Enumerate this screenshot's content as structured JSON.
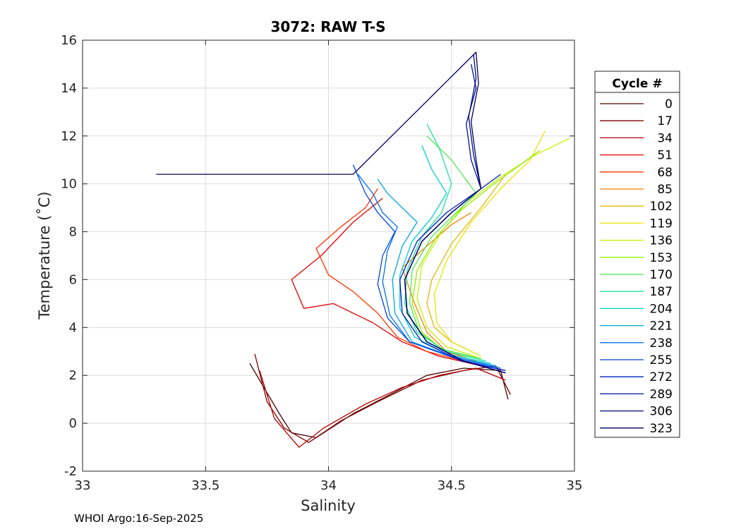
{
  "chart_data": {
    "type": "line",
    "title": "3072: RAW T-S",
    "xlabel": "Salinity",
    "ylabel": "Temperature (˚C)",
    "xlim": [
      33,
      35
    ],
    "ylim": [
      -2,
      16
    ],
    "xticks": [
      "33",
      "33.5",
      "34",
      "34.5",
      "35"
    ],
    "yticks": [
      "-2",
      "0",
      "2",
      "4",
      "6",
      "8",
      "10",
      "12",
      "14",
      "16"
    ],
    "grid": true,
    "legend": {
      "title": "Cycle #",
      "placement": "right-outside",
      "entries": [
        "0",
        "17",
        "34",
        "51",
        "68",
        "85",
        "102",
        "119",
        "136",
        "153",
        "170",
        "187",
        "204",
        "221",
        "238",
        "255",
        "272",
        "289",
        "306",
        "323"
      ],
      "colors": [
        "#4d0000",
        "#800000",
        "#b30000",
        "#e60000",
        "#ff3300",
        "#ff8000",
        "#e6b800",
        "#e6e600",
        "#c8f000",
        "#90f000",
        "#50e850",
        "#20e0a0",
        "#00d0d0",
        "#00a8e0",
        "#0070f0",
        "#0040e0",
        "#0020c0",
        "#0010a0",
        "#000a80",
        "#000066"
      ]
    },
    "series": [
      {
        "name": "0",
        "x": [
          34.73,
          34.7,
          34.55,
          34.4,
          34.25,
          34.1,
          33.95,
          33.85,
          33.8,
          33.72,
          33.68
        ],
        "y": [
          1.0,
          2.2,
          2.3,
          2.0,
          1.2,
          0.4,
          -0.6,
          -0.4,
          0.4,
          1.8,
          2.5
        ]
      },
      {
        "name": "17",
        "x": [
          34.74,
          34.68,
          34.55,
          34.38,
          34.2,
          34.05,
          33.92,
          33.82,
          33.75,
          33.7
        ],
        "y": [
          1.2,
          2.4,
          2.2,
          1.8,
          0.9,
          0.1,
          -0.8,
          -0.2,
          0.9,
          2.9
        ]
      },
      {
        "name": "34",
        "x": [
          34.72,
          34.6,
          34.45,
          34.3,
          34.15,
          33.98,
          33.88,
          33.78,
          33.72
        ],
        "y": [
          1.8,
          2.3,
          2.0,
          1.5,
          0.8,
          -0.2,
          -1.0,
          0.2,
          2.2
        ]
      },
      {
        "name": "51",
        "x": [
          34.62,
          34.45,
          34.3,
          34.18,
          34.02,
          33.9,
          33.85,
          33.97,
          34.1,
          34.22
        ],
        "y": [
          2.4,
          2.8,
          3.4,
          4.2,
          5.0,
          4.8,
          6.0,
          7.0,
          8.4,
          9.4
        ]
      },
      {
        "name": "68",
        "x": [
          34.55,
          34.4,
          34.28,
          34.2,
          34.1,
          34.0,
          33.95,
          34.05,
          34.15,
          34.2
        ],
        "y": [
          2.6,
          3.0,
          3.6,
          4.6,
          5.5,
          6.2,
          7.3,
          8.2,
          9.0,
          9.8
        ]
      },
      {
        "name": "85",
        "x": [
          34.6,
          34.48,
          34.4,
          34.35,
          34.3,
          34.5,
          34.58
        ],
        "y": [
          2.6,
          3.0,
          3.8,
          5.0,
          6.5,
          8.3,
          8.8
        ]
      },
      {
        "name": "102",
        "x": [
          34.62,
          34.5,
          34.43,
          34.4,
          34.42,
          34.5,
          34.62,
          34.72
        ],
        "y": [
          2.8,
          3.4,
          4.0,
          5.0,
          6.0,
          7.5,
          9.0,
          10.4
        ]
      },
      {
        "name": "119",
        "x": [
          34.62,
          34.5,
          34.44,
          34.43,
          34.48,
          34.58,
          34.7,
          34.82,
          34.88
        ],
        "y": [
          2.8,
          3.4,
          4.2,
          5.4,
          6.8,
          8.4,
          9.8,
          11.0,
          12.2
        ]
      },
      {
        "name": "136",
        "x": [
          34.62,
          34.48,
          34.4,
          34.36,
          34.38,
          34.46,
          34.56,
          34.7,
          34.84,
          34.98
        ],
        "y": [
          2.7,
          3.2,
          4.0,
          5.2,
          6.6,
          8.0,
          9.2,
          10.3,
          11.2,
          11.9
        ]
      },
      {
        "name": "153",
        "x": [
          34.62,
          34.46,
          34.38,
          34.34,
          34.36,
          34.44,
          34.54,
          34.66,
          34.78,
          34.86
        ],
        "y": [
          2.7,
          3.1,
          3.8,
          5.0,
          6.4,
          7.8,
          8.9,
          9.9,
          10.8,
          11.4
        ]
      },
      {
        "name": "170",
        "x": [
          34.62,
          34.46,
          34.37,
          34.33,
          34.34,
          34.42,
          34.52,
          34.6,
          34.5,
          34.4
        ],
        "y": [
          2.7,
          3.1,
          3.8,
          5.0,
          6.4,
          7.8,
          8.8,
          9.6,
          11.0,
          12.0
        ]
      },
      {
        "name": "187",
        "x": [
          34.64,
          34.48,
          34.36,
          34.31,
          34.32,
          34.38,
          34.46,
          34.5,
          34.45,
          34.4
        ],
        "y": [
          2.6,
          3.0,
          3.8,
          5.0,
          6.4,
          7.8,
          8.8,
          10.0,
          11.5,
          12.5
        ]
      },
      {
        "name": "204",
        "x": [
          34.66,
          34.48,
          34.35,
          34.29,
          34.29,
          34.34,
          34.42,
          34.48,
          34.42,
          34.38
        ],
        "y": [
          2.5,
          2.9,
          3.6,
          4.8,
          6.2,
          7.6,
          8.6,
          9.6,
          10.6,
          11.6
        ]
      },
      {
        "name": "221",
        "x": [
          34.68,
          34.5,
          34.34,
          34.27,
          34.26,
          34.3,
          34.36,
          34.3,
          34.24,
          34.2
        ],
        "y": [
          2.4,
          2.8,
          3.4,
          4.6,
          6.0,
          7.4,
          8.4,
          9.0,
          9.6,
          10.2
        ]
      },
      {
        "name": "238",
        "x": [
          34.7,
          34.5,
          34.33,
          34.25,
          34.22,
          34.24,
          34.28,
          34.22,
          34.18,
          34.12
        ],
        "y": [
          2.3,
          2.8,
          3.4,
          4.5,
          5.9,
          7.2,
          8.2,
          8.8,
          9.6,
          10.4
        ]
      },
      {
        "name": "255",
        "x": [
          34.72,
          34.52,
          34.33,
          34.24,
          34.2,
          34.22,
          34.27,
          34.2,
          34.15,
          34.1
        ],
        "y": [
          2.2,
          2.7,
          3.4,
          4.4,
          5.8,
          7.0,
          8.0,
          8.8,
          9.6,
          10.8
        ]
      },
      {
        "name": "272",
        "x": [
          34.72,
          34.54,
          34.38,
          34.3,
          34.29,
          34.36,
          34.48,
          34.62,
          34.7
        ],
        "y": [
          2.2,
          2.6,
          3.4,
          4.6,
          6.0,
          7.6,
          8.8,
          9.8,
          10.4
        ]
      },
      {
        "name": "289",
        "x": [
          34.72,
          34.55,
          34.4,
          34.32,
          34.31,
          34.38,
          34.5,
          34.62,
          34.58,
          34.56,
          34.6,
          34.58
        ],
        "y": [
          2.1,
          2.6,
          3.4,
          4.6,
          6.0,
          7.6,
          8.8,
          9.8,
          11.0,
          12.5,
          14.0,
          15.0
        ]
      },
      {
        "name": "306",
        "x": [
          34.72,
          34.55,
          34.4,
          34.32,
          34.31,
          34.38,
          34.5,
          34.62,
          34.59,
          34.57,
          34.6,
          34.59
        ],
        "y": [
          2.1,
          2.6,
          3.4,
          4.6,
          6.0,
          7.6,
          8.8,
          9.8,
          11.2,
          12.8,
          14.4,
          15.4
        ]
      },
      {
        "name": "323",
        "x": [
          34.72,
          34.55,
          34.4,
          34.32,
          34.31,
          34.38,
          34.5,
          34.62,
          34.6,
          34.58,
          34.61,
          34.6,
          34.1,
          33.3
        ],
        "y": [
          2.1,
          2.6,
          3.4,
          4.6,
          6.0,
          7.6,
          8.8,
          9.8,
          11.0,
          12.6,
          14.2,
          15.5,
          10.4,
          10.4
        ]
      }
    ]
  },
  "footer": {
    "text": "WHOI Argo:16-Sep-2025"
  }
}
